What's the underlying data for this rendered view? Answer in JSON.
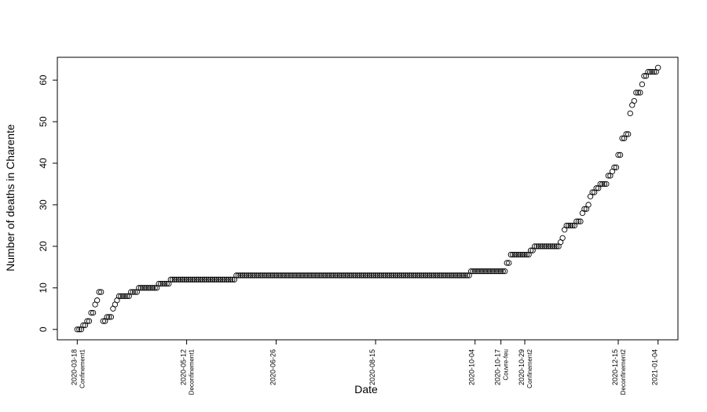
{
  "chart_data": {
    "type": "scatter",
    "title": "",
    "xlabel": "Date",
    "ylabel": "Number of deaths in Charente",
    "x_type": "date",
    "x_start": "2020-03-18",
    "xlim": [
      "2020-03-08",
      "2021-01-14"
    ],
    "ylim": [
      -2.5,
      65.5
    ],
    "y_ticks": [
      0,
      10,
      20,
      30,
      40,
      50,
      60
    ],
    "x_ticks": [
      {
        "date": "2020-03-18",
        "label": "2020-03-18",
        "event": "Confinement1"
      },
      {
        "date": "2020-05-12",
        "label": "2020-05-12",
        "event": "Deconfinement1"
      },
      {
        "date": "2020-06-26",
        "label": "2020-06-26",
        "event": ""
      },
      {
        "date": "2020-08-15",
        "label": "2020-08-15",
        "event": ""
      },
      {
        "date": "2020-10-04",
        "label": "2020-10-04",
        "event": ""
      },
      {
        "date": "2020-10-17",
        "label": "2020-10-17",
        "event": "Couvre-feu"
      },
      {
        "date": "2020-10-29",
        "label": "2020-10-29",
        "event": "Confinement2"
      },
      {
        "date": "2020-12-15",
        "label": "2020-12-15",
        "event": "Deconfinement2"
      },
      {
        "date": "2021-01-04",
        "label": "2021-01-04",
        "event": ""
      }
    ],
    "grid": false,
    "legend": "none",
    "marker": "open-circle",
    "step_series": [
      [
        "2020-03-18",
        0
      ],
      [
        "2020-03-21",
        1
      ],
      [
        "2020-03-23",
        2
      ],
      [
        "2020-03-25",
        4
      ],
      [
        "2020-03-27",
        6
      ],
      [
        "2020-03-28",
        7
      ],
      [
        "2020-03-29",
        9
      ],
      [
        "2020-03-31",
        2
      ],
      [
        "2020-04-01",
        2
      ],
      [
        "2020-04-02",
        3
      ],
      [
        "2020-04-05",
        5
      ],
      [
        "2020-04-06",
        6
      ],
      [
        "2020-04-07",
        7
      ],
      [
        "2020-04-08",
        8
      ],
      [
        "2020-04-14",
        9
      ],
      [
        "2020-04-18",
        10
      ],
      [
        "2020-04-28",
        11
      ],
      [
        "2020-05-04",
        12
      ],
      [
        "2020-06-06",
        13
      ],
      [
        "2020-10-02",
        14
      ],
      [
        "2020-10-20",
        16
      ],
      [
        "2020-10-22",
        18
      ],
      [
        "2020-11-01",
        19
      ],
      [
        "2020-11-03",
        20
      ],
      [
        "2020-11-16",
        21
      ],
      [
        "2020-11-17",
        22
      ],
      [
        "2020-11-18",
        24
      ],
      [
        "2020-11-19",
        25
      ],
      [
        "2020-11-24",
        26
      ],
      [
        "2020-11-27",
        28
      ],
      [
        "2020-11-28",
        29
      ],
      [
        "2020-11-30",
        30
      ],
      [
        "2020-12-01",
        32
      ],
      [
        "2020-12-02",
        33
      ],
      [
        "2020-12-04",
        34
      ],
      [
        "2020-12-06",
        35
      ],
      [
        "2020-12-10",
        37
      ],
      [
        "2020-12-12",
        38
      ],
      [
        "2020-12-13",
        39
      ],
      [
        "2020-12-15",
        42
      ],
      [
        "2020-12-17",
        46
      ],
      [
        "2020-12-19",
        47
      ],
      [
        "2020-12-21",
        52
      ],
      [
        "2020-12-22",
        54
      ],
      [
        "2020-12-23",
        55
      ],
      [
        "2020-12-24",
        57
      ],
      [
        "2020-12-27",
        59
      ],
      [
        "2020-12-28",
        61
      ],
      [
        "2020-12-30",
        62
      ],
      [
        "2021-01-04",
        63
      ]
    ]
  }
}
